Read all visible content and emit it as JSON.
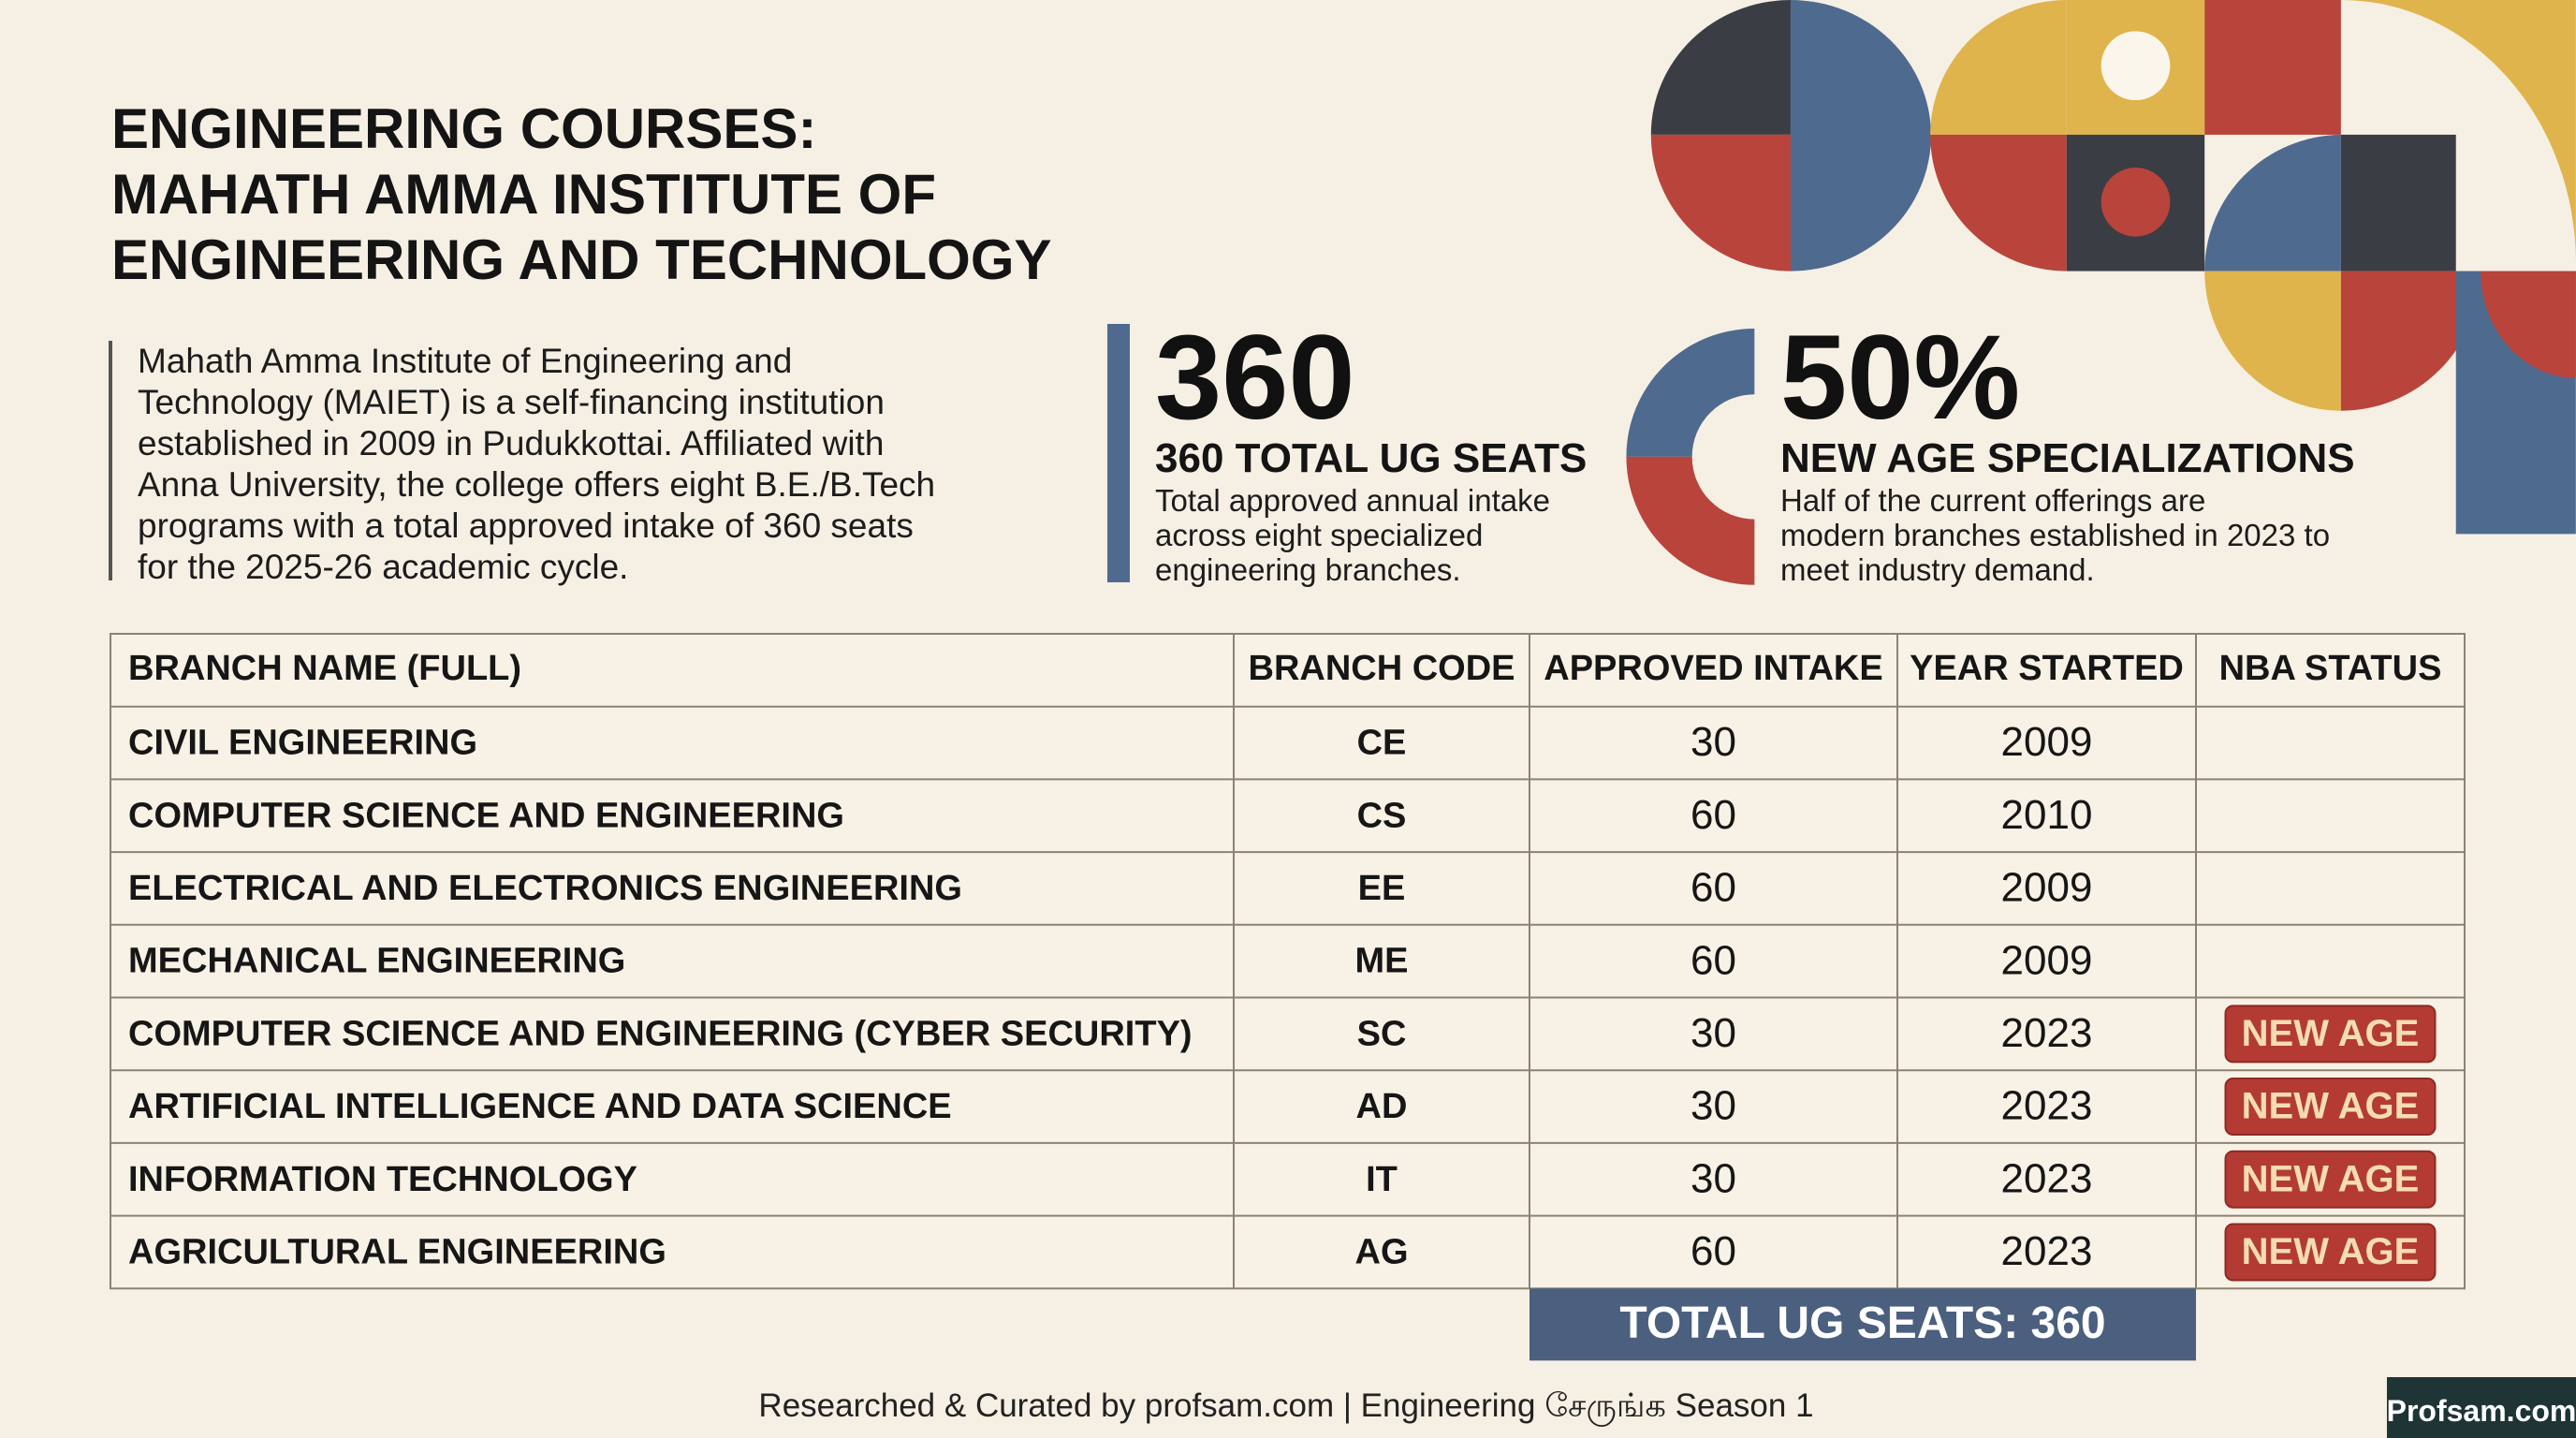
{
  "header": {
    "title_lines": [
      "ENGINEERING COURSES:",
      "MAHATH AMMA INSTITUTE OF",
      "ENGINEERING AND TECHNOLOGY"
    ]
  },
  "intro": {
    "lines": [
      "Mahath Amma Institute of Engineering and",
      "Technology (MAIET) is a self-financing institution",
      "established in 2009 in Pudukkottai. Affiliated with",
      "Anna University, the college offers eight B.E./B.Tech",
      "programs with a total approved intake of 360 seats",
      "for the 2025-26 academic cycle."
    ]
  },
  "stats": [
    {
      "value": "360",
      "label": "360 TOTAL UG SEATS",
      "desc_lines": [
        "Total approved annual intake",
        "across eight specialized",
        "engineering branches."
      ]
    },
    {
      "value": "50%",
      "label": "NEW AGE SPECIALIZATIONS",
      "desc_lines": [
        "Half of the current offerings are",
        "modern branches established in 2023 to",
        "meet industry demand."
      ]
    }
  ],
  "table": {
    "headers": [
      "BRANCH NAME (FULL)",
      "BRANCH CODE",
      "APPROVED INTAKE",
      "YEAR STARTED",
      "NBA STATUS"
    ],
    "rows": [
      [
        "CIVIL ENGINEERING",
        "CE",
        30,
        2009,
        null
      ],
      [
        "COMPUTER SCIENCE AND ENGINEERING",
        "CS",
        60,
        2010,
        null
      ],
      [
        "ELECTRICAL AND ELECTRONICS ENGINEERING",
        "EE",
        60,
        2009,
        null
      ],
      [
        "MECHANICAL ENGINEERING",
        "ME",
        60,
        2009,
        null
      ],
      [
        "COMPUTER SCIENCE AND ENGINEERING (CYBER SECURITY)",
        "SC",
        30,
        2023,
        "NEW AGE"
      ],
      [
        "ARTIFICIAL INTELLIGENCE AND DATA SCIENCE",
        "AD",
        30,
        2023,
        "NEW AGE"
      ],
      [
        "INFORMATION TECHNOLOGY",
        "IT",
        30,
        2023,
        "NEW AGE"
      ],
      [
        "AGRICULTURAL ENGINEERING",
        "AG",
        60,
        2023,
        "NEW AGE"
      ]
    ],
    "total": "TOTAL UG SEATS: 360"
  },
  "footer": {
    "credit": "Researched & Curated by profsam.com | Engineering சேருங்க Season 1",
    "logo": "Profsam.com"
  }
}
